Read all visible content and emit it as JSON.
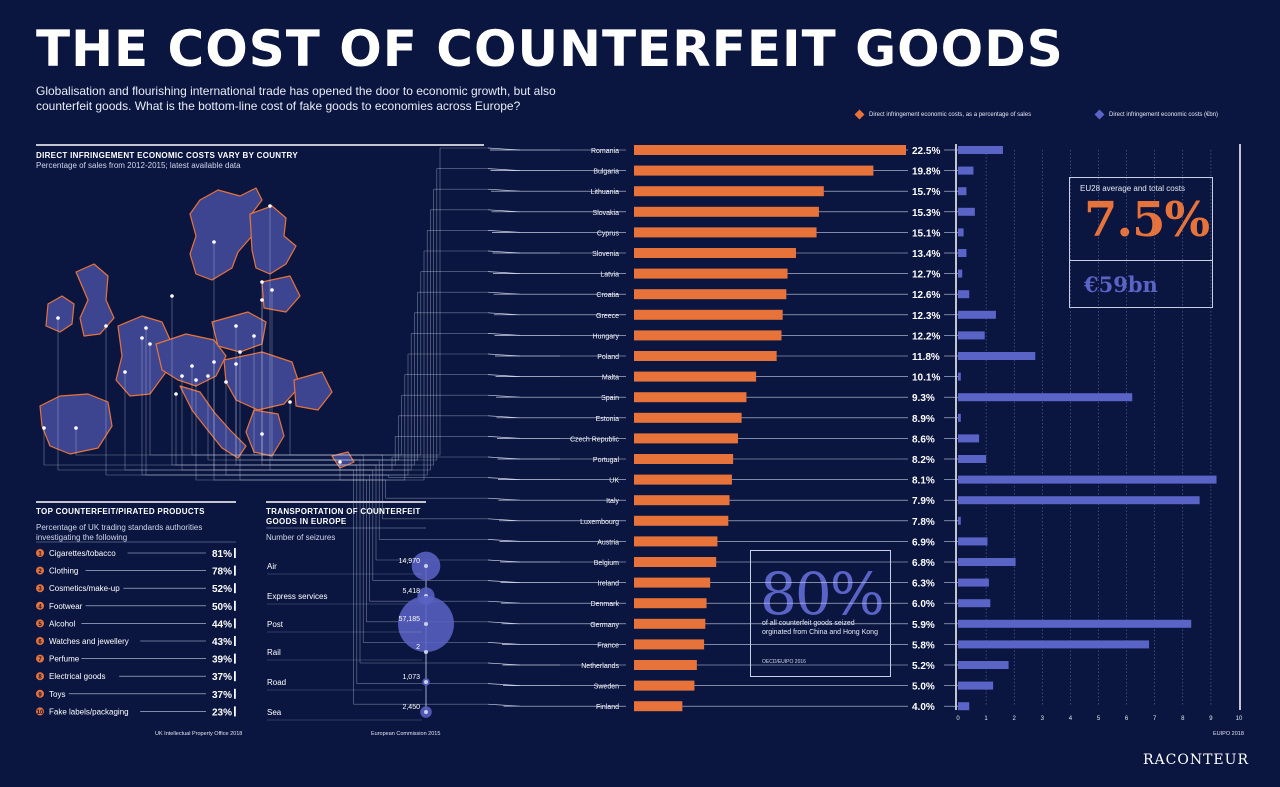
{
  "header": {
    "title": "THE COST OF COUNTERFEIT GOODS",
    "intro": "Globalisation and flourishing international trade has opened the door to economic growth, but also counterfeit goods. What is the bottom-line cost of fake goods to economies across Europe?"
  },
  "colors": {
    "background": "#0b1640",
    "orange": "#e8733a",
    "purple": "#5a63c6",
    "line": "#c9cfe4"
  },
  "legend": {
    "pct": "Direct infringement economic costs, as a percentage of sales",
    "bn": "Direct infringement economic costs (€bn)"
  },
  "map_section": {
    "title": "DIRECT INFRINGEMENT ECONOMIC COSTS VARY BY COUNTRY",
    "subtitle": "Percentage of sales from 2012-2015; latest available data"
  },
  "eu_callout": {
    "label": "EU28 average and total costs",
    "pct": "7.5%",
    "bn": "€59bn"
  },
  "china_callout": {
    "value": "80%",
    "text": "of all counterfeit goods seized orginated from China and Hong Kong",
    "source": "OECD/EUIPO 2016"
  },
  "chart_data": [
    {
      "type": "bar",
      "orientation": "horizontal",
      "title": "DIRECT INFRINGEMENT ECONOMIC COSTS VARY BY COUNTRY",
      "series": [
        {
          "name": "Direct infringement economic costs, as a percentage of sales",
          "unit": "%",
          "values": [
            22.5,
            19.8,
            15.7,
            15.3,
            15.1,
            13.4,
            12.7,
            12.6,
            12.3,
            12.2,
            11.8,
            10.1,
            9.3,
            8.9,
            8.6,
            8.2,
            8.1,
            7.9,
            7.8,
            6.9,
            6.8,
            6.3,
            6.0,
            5.9,
            5.8,
            5.2,
            5.0,
            4.0
          ],
          "labels": [
            "22.5%",
            "19.8%",
            "15.7%",
            "15.3%",
            "15.1%",
            "13.4%",
            "12.7%",
            "12.6%",
            "12.3%",
            "12.2%",
            "11.8%",
            "10.1%",
            "9.3%",
            "8.9%",
            "8.6%",
            "8.2%",
            "8.1%",
            "7.9%",
            "7.8%",
            "6.9%",
            "6.8%",
            "6.3%",
            "6.0%",
            "5.9%",
            "5.8%",
            "5.2%",
            "5.0%",
            "4.0%"
          ]
        },
        {
          "name": "Direct infringement economic costs (€bn)",
          "unit": "€bn",
          "values": [
            1.6,
            0.55,
            0.3,
            0.6,
            0.2,
            0.3,
            0.15,
            0.4,
            1.35,
            0.95,
            2.75,
            0.1,
            6.2,
            0.1,
            0.75,
            1.0,
            9.2,
            8.6,
            0.1,
            1.05,
            2.05,
            1.1,
            1.15,
            8.3,
            6.8,
            1.8,
            1.25,
            0.4
          ],
          "xlim": [
            0,
            10
          ],
          "ticks": [
            "0",
            "1",
            "2",
            "3",
            "4",
            "5",
            "6",
            "7",
            "8",
            "9",
            "10"
          ]
        }
      ],
      "categories": [
        "Romania",
        "Bulgaria",
        "Lithuania",
        "Slovakia",
        "Cyprus",
        "Slovenia",
        "Latvia",
        "Croatia",
        "Greece",
        "Hungary",
        "Poland",
        "Malta",
        "Spain",
        "Estonia",
        "Czech Republic",
        "Portugal",
        "UK",
        "Italy",
        "Luxembourg",
        "Austria",
        "Belgium",
        "Ireland",
        "Denmark",
        "Germany",
        "France",
        "Netherlands",
        "Sweden",
        "Finland"
      ],
      "source": "EUIPO 2018"
    },
    {
      "type": "bar",
      "title": "TOP COUNTERFEIT/PIRATED PRODUCTS",
      "subtitle": "Percentage of UK trading standards authorities investigating the following",
      "categories": [
        "Cigarettes/tobacco",
        "Clothing",
        "Cosmetics/make-up",
        "Footwear",
        "Alcohol",
        "Watches and jewellery",
        "Perfume",
        "Electrical goods",
        "Toys",
        "Fake labels/packaging"
      ],
      "values": [
        81,
        78,
        52,
        50,
        44,
        43,
        39,
        37,
        37,
        23
      ],
      "labels": [
        "81%",
        "78%",
        "52%",
        "50%",
        "44%",
        "43%",
        "39%",
        "37%",
        "37%",
        "23%"
      ],
      "ranks": [
        "1",
        "2",
        "3",
        "4",
        "5",
        "6",
        "7",
        "8",
        "9",
        "10"
      ],
      "source": "UK Intellectual Property Office 2018"
    },
    {
      "type": "scatter",
      "title": "TRANSPORTATION OF COUNTERFEIT GOODS IN EUROPE",
      "subtitle": "Number of seizures",
      "categories": [
        "Air",
        "Express services",
        "Post",
        "Rail",
        "Road",
        "Sea"
      ],
      "values": [
        14970,
        5418,
        57185,
        2,
        1073,
        2450
      ],
      "labels": [
        "14,970",
        "5,418",
        "57,185",
        "2",
        "1,073",
        "2,450"
      ],
      "source": "European Commission 2015"
    }
  ],
  "footer": {
    "brand": "RACONTEUR"
  }
}
